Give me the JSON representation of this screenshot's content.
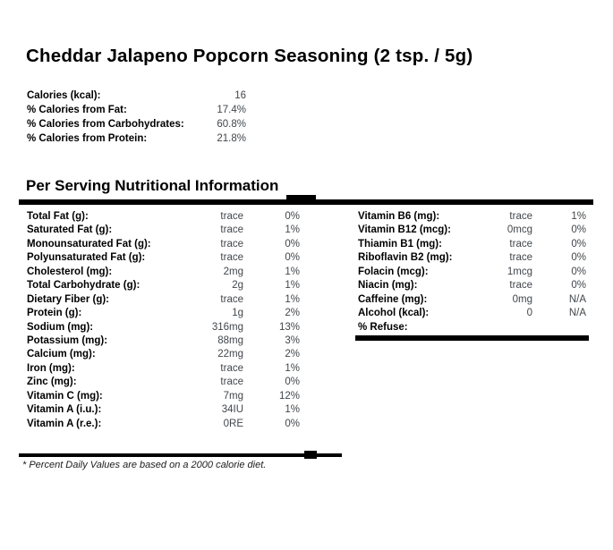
{
  "page": {
    "title": "Cheddar Jalapeno Popcorn Seasoning (2 tsp. / 5g)",
    "section_heading": "Per Serving Nutritional Information",
    "footnote": "* Percent Daily Values are based on a 2000 calorie diet."
  },
  "summary": {
    "rows": [
      {
        "label": "Calories (kcal):",
        "value": "16"
      },
      {
        "label": "% Calories from Fat:",
        "value": "17.4%"
      },
      {
        "label": "% Calories from Carbohydrates:",
        "value": "60.8%"
      },
      {
        "label": "% Calories from Protein:",
        "value": "21.8%"
      }
    ]
  },
  "nutrition_left": {
    "rows": [
      {
        "label": "Total Fat (g):",
        "value": "trace",
        "dv": "0%"
      },
      {
        "label": "Saturated Fat (g):",
        "value": "trace",
        "dv": "1%"
      },
      {
        "label": "Monounsaturated Fat (g):",
        "value": "trace",
        "dv": "0%"
      },
      {
        "label": "Polyunsaturated Fat (g):",
        "value": "trace",
        "dv": "0%"
      },
      {
        "label": "Cholesterol (mg):",
        "value": "2mg",
        "dv": "1%"
      },
      {
        "label": "Total Carbohydrate (g):",
        "value": "2g",
        "dv": "1%"
      },
      {
        "label": "Dietary Fiber (g):",
        "value": "trace",
        "dv": "1%"
      },
      {
        "label": "Protein (g):",
        "value": "1g",
        "dv": "2%"
      },
      {
        "label": "Sodium (mg):",
        "value": "316mg",
        "dv": "13%"
      },
      {
        "label": "Potassium (mg):",
        "value": "88mg",
        "dv": "3%"
      },
      {
        "label": "Calcium (mg):",
        "value": "22mg",
        "dv": "2%"
      },
      {
        "label": "Iron (mg):",
        "value": "trace",
        "dv": "1%"
      },
      {
        "label": "Zinc (mg):",
        "value": "trace",
        "dv": "0%"
      },
      {
        "label": "Vitamin C (mg):",
        "value": "7mg",
        "dv": "12%"
      },
      {
        "label": "Vitamin A (i.u.):",
        "value": "34IU",
        "dv": "1%"
      },
      {
        "label": "Vitamin A (r.e.):",
        "value": "0RE",
        "dv": "0%"
      }
    ]
  },
  "nutrition_right": {
    "rows": [
      {
        "label": "Vitamin B6 (mg):",
        "value": "trace",
        "dv": "1%"
      },
      {
        "label": "Vitamin B12 (mcg):",
        "value": "0mcg",
        "dv": "0%"
      },
      {
        "label": "Thiamin B1 (mg):",
        "value": "trace",
        "dv": "0%"
      },
      {
        "label": "Riboflavin B2 (mg):",
        "value": "trace",
        "dv": "0%"
      },
      {
        "label": "Folacin (mcg):",
        "value": "1mcg",
        "dv": "0%"
      },
      {
        "label": "Niacin (mg):",
        "value": "trace",
        "dv": "0%"
      },
      {
        "label": "Caffeine (mg):",
        "value": "0mg",
        "dv": "N/A"
      },
      {
        "label": "Alcohol (kcal):",
        "value": "0",
        "dv": "N/A"
      },
      {
        "label": "% Refuse:",
        "value": "",
        "dv": ""
      }
    ]
  },
  "colors": {
    "background": "#ffffff",
    "label_text": "#000000",
    "value_text": "#41464b",
    "divider": "#000000"
  }
}
